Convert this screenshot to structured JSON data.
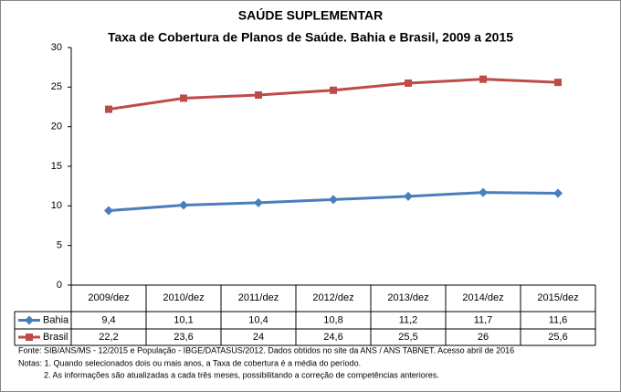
{
  "chart_data": {
    "type": "line",
    "title": "SAÚDE SUPLEMENTAR",
    "subtitle": "Taxa de Cobertura de Planos de Saúde. Bahia e Brasil, 2009 a 2015",
    "categories": [
      "2009/dez",
      "2010/dez",
      "2011/dez",
      "2012/dez",
      "2013/dez",
      "2014/dez",
      "2015/dez"
    ],
    "series": [
      {
        "name": "Bahia",
        "color": "#4a7ebb",
        "marker": "diamond",
        "values": [
          9.4,
          10.1,
          10.4,
          10.8,
          11.2,
          11.7,
          11.6
        ],
        "value_labels": [
          "9,4",
          "10,1",
          "10,4",
          "10,8",
          "11,2",
          "11,7",
          "11,6"
        ]
      },
      {
        "name": "Brasil",
        "color": "#be4b48",
        "marker": "square",
        "values": [
          22.2,
          23.6,
          24,
          24.6,
          25.5,
          26,
          25.6
        ],
        "value_labels": [
          "22,2",
          "23,6",
          "24",
          "24,6",
          "25,5",
          "26",
          "25,6"
        ]
      }
    ],
    "ylim": [
      0,
      30
    ],
    "yticks": [
      0,
      5,
      10,
      15,
      20,
      25,
      30
    ],
    "grid": false,
    "source": "Fonte: SIB/ANS/MS - 12/2015 e População - IBGE/DATASUS/2012. Dados obtidos no site da ANS / ANS TABNET. Acesso abril de 2016",
    "notes": [
      "Notas: 1. Quando selecionados dois ou mais anos, a Taxa de cobertura é a média do período.",
      "2. As informações são atualizadas a cada três meses, possibilitando a correção de competências anteriores."
    ]
  }
}
